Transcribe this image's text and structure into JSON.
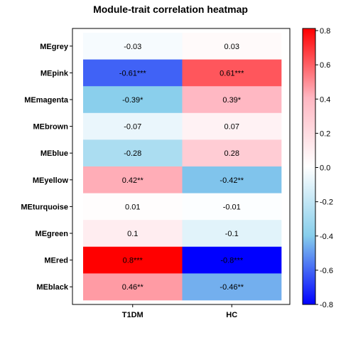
{
  "chart_data": {
    "type": "heatmap",
    "title": "Module-trait correlation heatmap",
    "xlabel": "",
    "ylabel": "",
    "columns": [
      "T1DM",
      "HC"
    ],
    "rows": [
      "MEgrey",
      "MEpink",
      "MEmagenta",
      "MEbrown",
      "MEblue",
      "MEyellow",
      "MEturquoise",
      "MEgreen",
      "MEred",
      "MEblack"
    ],
    "values": [
      [
        -0.03,
        0.03
      ],
      [
        -0.61,
        0.61
      ],
      [
        -0.39,
        0.39
      ],
      [
        -0.07,
        0.07
      ],
      [
        -0.28,
        0.28
      ],
      [
        0.42,
        -0.42
      ],
      [
        0.01,
        -0.01
      ],
      [
        0.1,
        -0.1
      ],
      [
        0.8,
        -0.8
      ],
      [
        0.46,
        -0.46
      ]
    ],
    "cell_labels": [
      [
        "-0.03",
        "0.03"
      ],
      [
        "-0.61***",
        "0.61***"
      ],
      [
        "-0.39*",
        "0.39*"
      ],
      [
        "-0.07",
        "0.07"
      ],
      [
        "-0.28",
        "0.28"
      ],
      [
        "0.42**",
        "-0.42**"
      ],
      [
        "0.01",
        "-0.01"
      ],
      [
        "0.1",
        "-0.1"
      ],
      [
        "0.8***",
        "-0.8***"
      ],
      [
        "0.46**",
        "-0.46**"
      ]
    ],
    "colorbar": {
      "range": [
        -0.8,
        0.8
      ],
      "ticks": [
        0.8,
        0.6,
        0.4,
        0.2,
        0.0,
        -0.2,
        -0.4,
        -0.6,
        -0.8
      ],
      "tick_labels": [
        "0.8",
        "0.6",
        "0.4",
        "0.2",
        "0.0",
        "-0.2",
        "-0.4",
        "-0.6",
        "-0.8"
      ],
      "colors": [
        "#0000ff",
        "#87ceeb",
        "#ffffff",
        "#ffb6c1",
        "#ff0000"
      ],
      "placement": "right"
    },
    "grid": false
  }
}
